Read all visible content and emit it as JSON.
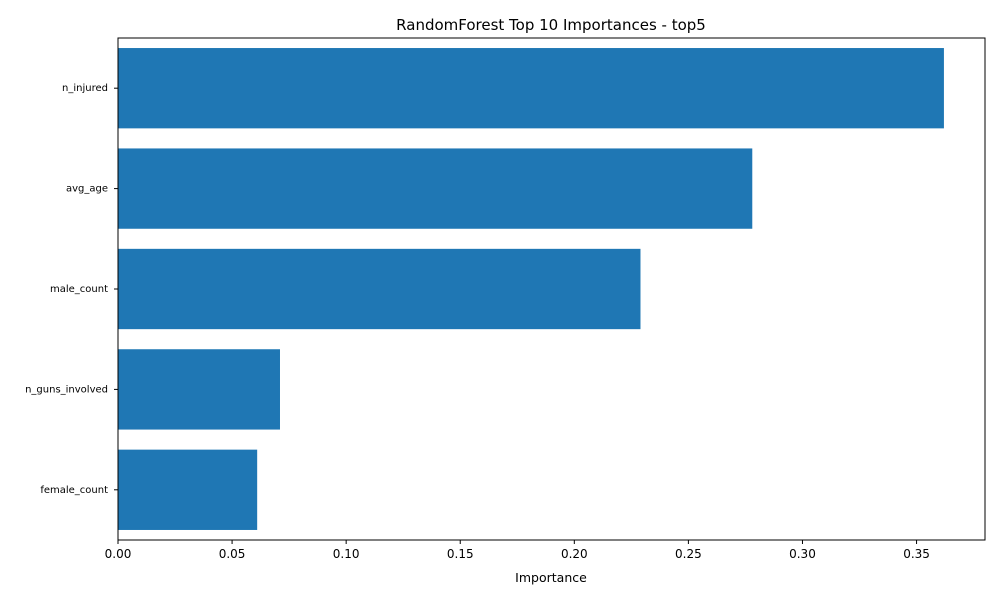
{
  "chart_data": {
    "type": "bar",
    "orientation": "horizontal",
    "title": "RandomForest Top 10 Importances - top5",
    "xlabel": "Importance",
    "ylabel": "",
    "categories": [
      "n_injured",
      "avg_age",
      "male_count",
      "n_guns_involved",
      "female_count"
    ],
    "values": [
      0.362,
      0.278,
      0.229,
      0.071,
      0.061
    ],
    "xlim": [
      0,
      0.38
    ],
    "xticks": [
      0.0,
      0.05,
      0.1,
      0.15,
      0.2,
      0.25,
      0.3,
      0.35
    ],
    "xtick_labels": [
      "0.00",
      "0.05",
      "0.10",
      "0.15",
      "0.20",
      "0.25",
      "0.30",
      "0.35"
    ],
    "bar_color": "#1f77b4",
    "grid": false
  }
}
